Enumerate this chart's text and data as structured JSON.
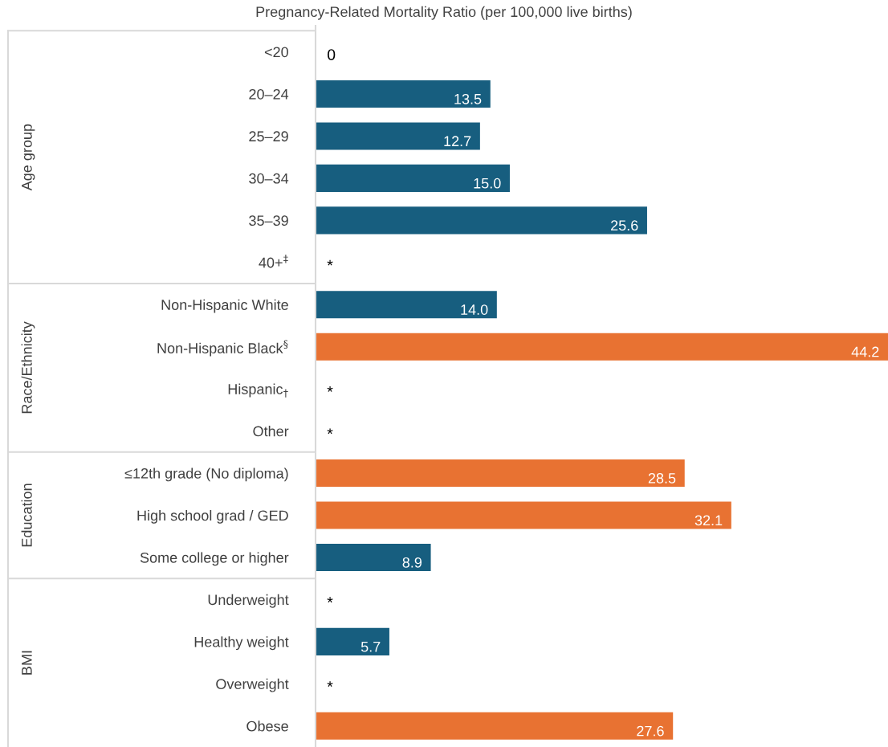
{
  "chart_data": {
    "type": "bar",
    "orientation": "horizontal",
    "title": "Pregnancy-Related Mortality Ratio (per 100,000 live births)",
    "categories": [
      "<20",
      "20–24",
      "25–29",
      "30–34",
      "35–39",
      "40+$^{‡}$",
      "Non-Hispanic White",
      "Non-Hispanic Black$^{§}$",
      "Hispanic$_{†}$",
      "Other",
      "≤12th grade (No diploma)",
      "High school grad / GED",
      "Some college or higher",
      "Underweight",
      "Healthy weight",
      "Overweight",
      "Obese"
    ],
    "values": [
      0,
      13.5,
      12.7,
      15.0,
      25.6,
      null,
      14.0,
      44.2,
      null,
      null,
      28.5,
      32.1,
      8.9,
      null,
      5.7,
      null,
      27.6
    ],
    "value_labels": [
      "0",
      "13.5",
      "12.7",
      "15.0",
      "25.6",
      "*",
      "14.0",
      "44.2",
      "*",
      "*",
      "28.5",
      "32.1",
      "8.9",
      "*",
      "5.7",
      "*",
      "27.6"
    ],
    "colors": [
      "#175e7f",
      "#175e7f",
      "#175e7f",
      "#175e7f",
      "#175e7f",
      null,
      "#175e7f",
      "#e87232",
      null,
      null,
      "#e87232",
      "#e87232",
      "#175e7f",
      null,
      "#175e7f",
      null,
      "#e87232"
    ],
    "annotations": [
      "Age group",
      "Race/Ethnicity",
      "Education",
      "BMI"
    ]
  }
}
